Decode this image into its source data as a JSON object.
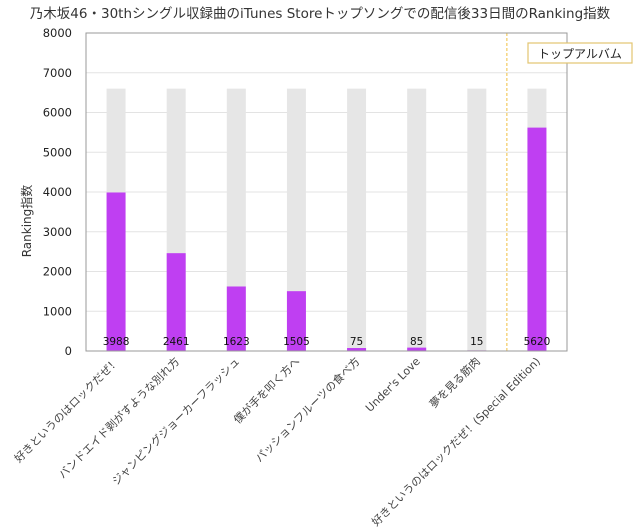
{
  "chart_data": {
    "type": "bar",
    "title": "乃木坂46・30thシングル収録曲のiTunes Storeトップソングでの配信後33日間のRanking指数",
    "xlabel": "",
    "ylabel": "Ranking指数",
    "ylim": [
      0,
      8000
    ],
    "yticks": [
      0,
      1000,
      2000,
      3000,
      4000,
      5000,
      6000,
      7000,
      8000
    ],
    "grid": true,
    "categories": [
      "好きというのはロックだぜ！",
      "バンドエイド剥がすような別れ方",
      "ジャンピングジョーカーフラッシュ",
      "僕が手を叩く方へ",
      "パッションフルーツの食べ方",
      "Under's Love",
      "夢を見る筋肉",
      "好きというのはロックだぜ！(Special Edition)"
    ],
    "series": [
      {
        "values": [
          6600,
          6600,
          6600,
          6600,
          6600,
          6600,
          6600,
          6600
        ],
        "color": "#e6e6e6"
      },
      {
        "values": [
          3988,
          2461,
          1623,
          1505,
          75,
          85,
          15,
          5620
        ],
        "color": "#bf3ff2"
      }
    ],
    "data_labels": [
      "3988",
      "2461",
      "1623",
      "1505",
      "75",
      "85",
      "15",
      "5620"
    ],
    "divider_after_index": 6,
    "annotation": "トップアルバム",
    "colors": {
      "divider": "#f0c040",
      "axis": "#999999",
      "grid": "#e3e3e3"
    }
  }
}
